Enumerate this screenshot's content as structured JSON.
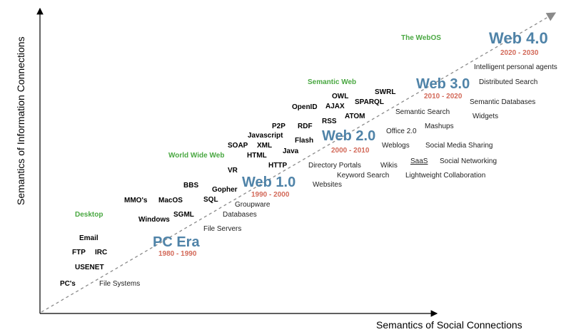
{
  "axes": {
    "x_label": "Semantics of Social Connections",
    "y_label": "Semantics of Information Connections"
  },
  "colors": {
    "era_title": "#4f83a8",
    "era_years": "#d36a5a",
    "category": "#4aa842",
    "trend_line": "#8a8a8a"
  },
  "eras": [
    {
      "title": "PC Era",
      "years": "1980 - 1990"
    },
    {
      "title": "Web 1.0",
      "years": "1990 - 2000"
    },
    {
      "title": "Web 2.0",
      "years": "2000 - 2010"
    },
    {
      "title": "Web 3.0",
      "years": "2010 - 2020"
    },
    {
      "title": "Web 4.0",
      "years": "2020 - 2030"
    }
  ],
  "categories": [
    "Desktop",
    "World Wide Web",
    "Semantic Web",
    "The WebOS"
  ],
  "technologies": [
    "PC's",
    "USENET",
    "FTP",
    "IRC",
    "Email",
    "Windows",
    "SGML",
    "MMO's",
    "MacOS",
    "BBS",
    "SQL",
    "Gopher",
    "VR",
    "HTTP",
    "SOAP",
    "HTML",
    "XML",
    "Javascript",
    "Java",
    "Flash",
    "P2P",
    "RDF",
    "RSS",
    "OpenID",
    "AJAX",
    "OWL",
    "SPARQL",
    "ATOM",
    "SWRL"
  ],
  "applications": [
    "File Systems",
    "File Servers",
    "Databases",
    "Groupware",
    "Websites",
    "Directory Portals",
    "Wikis",
    "Keyword Search",
    "Weblogs",
    "SaaS",
    "Lightweight Collaboration",
    "Social Networking",
    "Social Media Sharing",
    "Office 2.0",
    "Mashups",
    "Semantic Search",
    "Widgets",
    "Semantic Databases",
    "Distributed Search",
    "Intelligent personal agents"
  ]
}
